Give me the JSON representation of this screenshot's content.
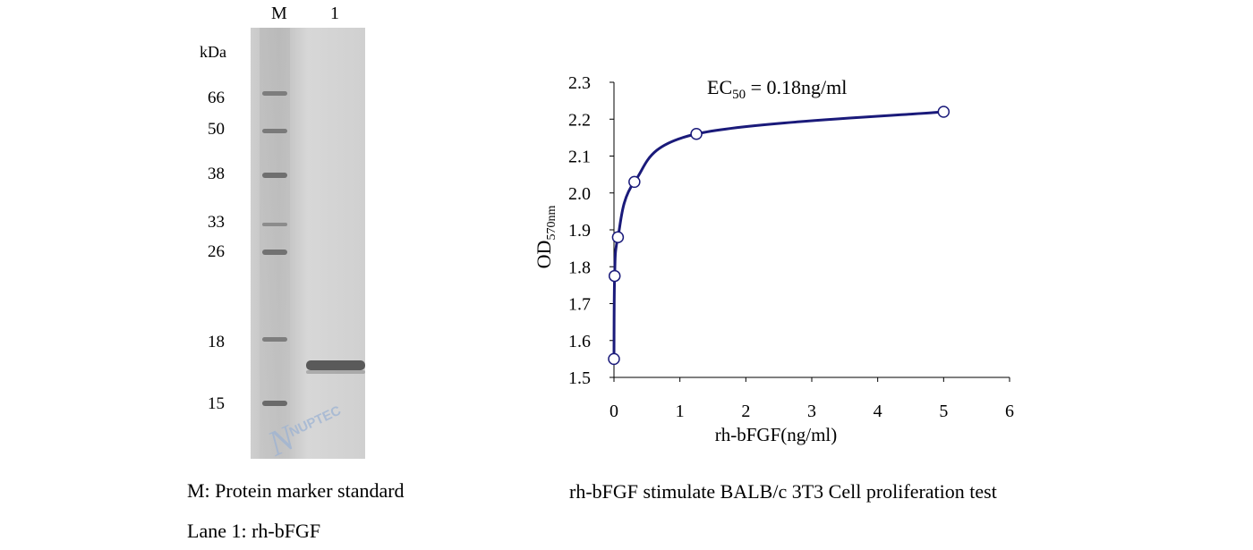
{
  "gel": {
    "lane_labels": [
      "M",
      "1"
    ],
    "unit": "kDa",
    "marker_sizes": [
      "66",
      "50",
      "38",
      "33",
      "26",
      "18",
      "15"
    ],
    "watermark": "NUPTEC",
    "caption_marker": "M: Protein marker standard",
    "caption_lane": "Lane 1: rh-bFGF",
    "colors": {
      "gel_bg": "#d3d3d3",
      "band": "#5a5a5a",
      "watermark": "#9db3d3"
    }
  },
  "figure_caption": "rh-bFGF  stimulate BALB/c 3T3 Cell proliferation test",
  "chart_data": {
    "type": "scatter",
    "annotation": {
      "prefix": "EC",
      "subscript": "50",
      "suffix": " = 0.18ng/ml"
    },
    "xlabel": "rh-bFGF(ng/ml)",
    "ylabel": {
      "main": "OD",
      "subscript": "570nm"
    },
    "xlim": [
      0,
      6
    ],
    "ylim": [
      1.5,
      2.3
    ],
    "xticks": [
      "0",
      "1",
      "2",
      "3",
      "4",
      "5",
      "6"
    ],
    "yticks": [
      "1.5",
      "1.6",
      "1.7",
      "1.8",
      "1.9",
      "2.0",
      "2.1",
      "2.2",
      "2.3"
    ],
    "series": [
      {
        "x": [
          0,
          0.01,
          0.06,
          0.31,
          1.25,
          5
        ],
        "y": [
          1.55,
          1.775,
          1.88,
          2.03,
          2.16,
          2.22
        ]
      }
    ],
    "grid": false,
    "colors": {
      "line": "#1a1a7a",
      "marker_fill": "#ffffff",
      "marker_stroke": "#1a1a7a"
    }
  }
}
